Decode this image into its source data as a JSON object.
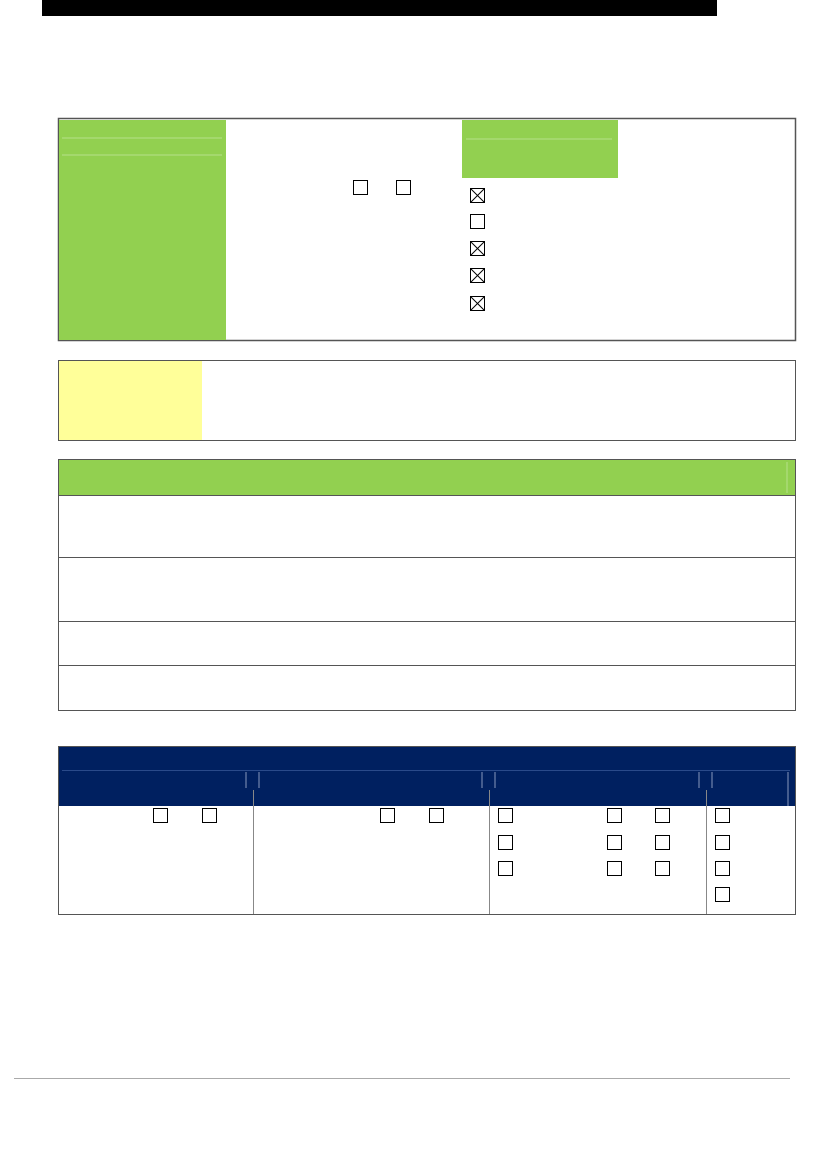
{
  "checkbox_group": {
    "checked": [
      true,
      false,
      true,
      true,
      true
    ]
  }
}
